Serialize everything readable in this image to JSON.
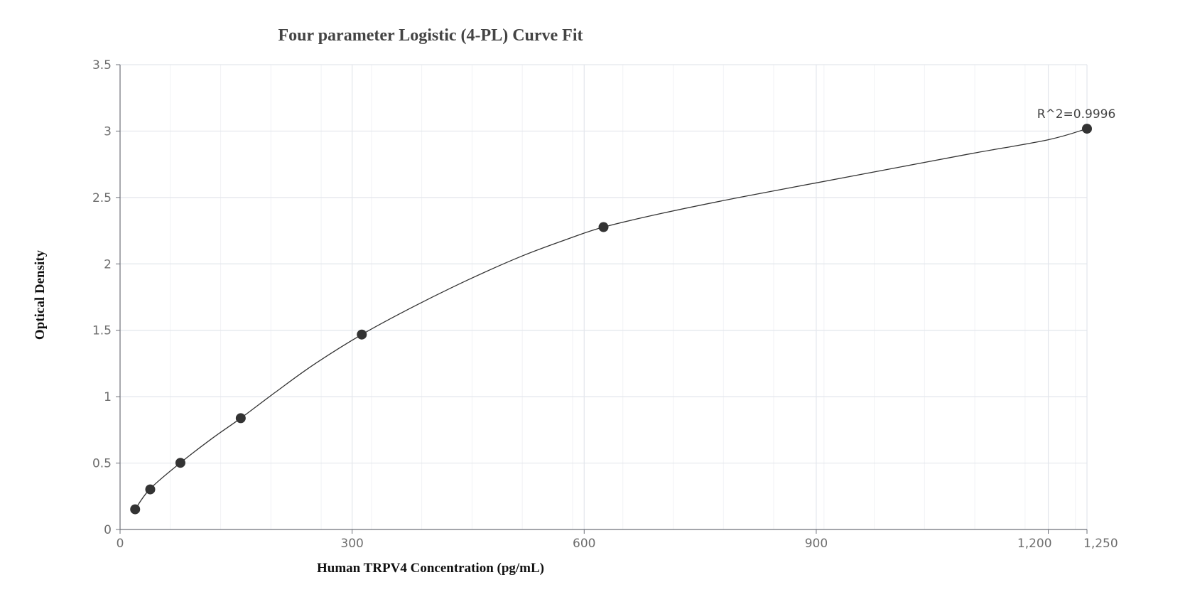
{
  "chart_data": {
    "type": "scatter",
    "title": "Four parameter Logistic (4-PL) Curve Fit",
    "xlabel": "Human TRPV4 Concentration (pg/mL)",
    "ylabel": "Optical Density",
    "xlim": [
      0,
      1250
    ],
    "ylim": [
      0,
      3.5
    ],
    "x_ticks": [
      0,
      300,
      600,
      900,
      1200,
      1250
    ],
    "x_tick_labels": [
      "0",
      "300",
      "600",
      "900",
      "1,200",
      "1,250"
    ],
    "y_ticks": [
      0,
      0.5,
      1,
      1.5,
      2,
      2.5,
      3,
      3.5
    ],
    "y_tick_labels": [
      "0",
      "0.5",
      "1",
      "1.5",
      "2",
      "2.5",
      "3",
      "3.5"
    ],
    "grid": true,
    "points": [
      {
        "x": 19.5,
        "y": 0.152
      },
      {
        "x": 39,
        "y": 0.302
      },
      {
        "x": 78,
        "y": 0.502
      },
      {
        "x": 156,
        "y": 0.838
      },
      {
        "x": 312.5,
        "y": 1.468
      },
      {
        "x": 625,
        "y": 2.277
      },
      {
        "x": 1250,
        "y": 3.018
      }
    ],
    "fit_curve": [
      {
        "x": 19.5,
        "y": 0.152
      },
      {
        "x": 39,
        "y": 0.307
      },
      {
        "x": 78,
        "y": 0.502
      },
      {
        "x": 120,
        "y": 0.69
      },
      {
        "x": 156,
        "y": 0.838
      },
      {
        "x": 200,
        "y": 1.03
      },
      {
        "x": 250,
        "y": 1.24
      },
      {
        "x": 312.5,
        "y": 1.468
      },
      {
        "x": 380,
        "y": 1.68
      },
      {
        "x": 450,
        "y": 1.88
      },
      {
        "x": 520,
        "y": 2.06
      },
      {
        "x": 580,
        "y": 2.19
      },
      {
        "x": 625,
        "y": 2.277
      },
      {
        "x": 700,
        "y": 2.38
      },
      {
        "x": 800,
        "y": 2.5
      },
      {
        "x": 900,
        "y": 2.61
      },
      {
        "x": 1000,
        "y": 2.72
      },
      {
        "x": 1100,
        "y": 2.83
      },
      {
        "x": 1200,
        "y": 2.935
      },
      {
        "x": 1250,
        "y": 3.018
      }
    ],
    "annotation": {
      "text": "R^2=0.9996",
      "x": 1250,
      "y": 3.018
    }
  },
  "colors": {
    "point": "#333333",
    "curve": "#333333",
    "grid_major": "#e3e6ec",
    "grid_minor": "#f1f2f5",
    "axis": "#6e7079"
  }
}
